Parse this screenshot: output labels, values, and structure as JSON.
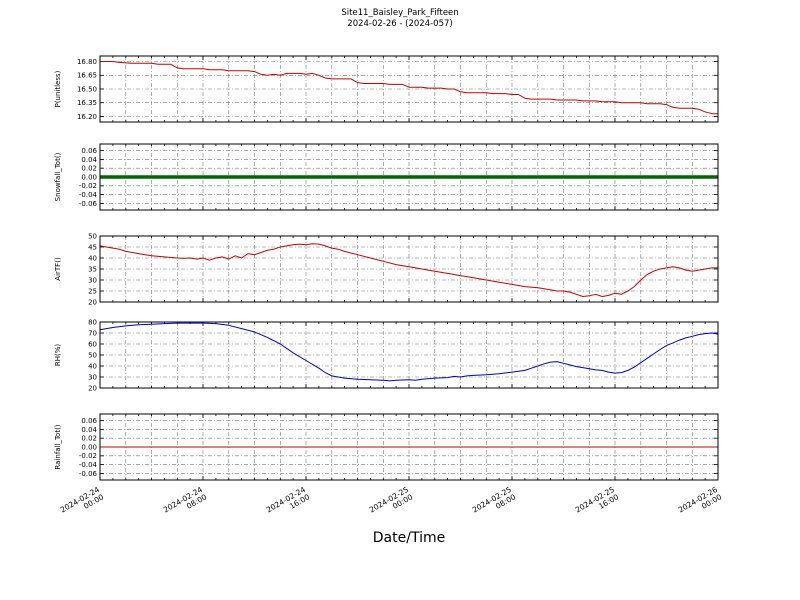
{
  "title": {
    "line1": "Site11_Baisley_Park_Fifteen",
    "line2": "2024-02-26 - (2024-057)"
  },
  "xlabel": "Date/Time",
  "x_axis": {
    "start_hour": 0,
    "end_hour": 48,
    "grid_interval_hours": 2,
    "minor_tick_interval_hours": 1,
    "tick_hours": [
      0,
      8,
      16,
      24,
      32,
      40,
      48
    ],
    "tick_labels": [
      {
        "date": "2024-02-24",
        "time": "00:00"
      },
      {
        "date": "2024-02-24",
        "time": "08:00"
      },
      {
        "date": "2024-02-24",
        "time": "16:00"
      },
      {
        "date": "2024-02-25",
        "time": "00:00"
      },
      {
        "date": "2024-02-25",
        "time": "08:00"
      },
      {
        "date": "2024-02-25",
        "time": "16:00"
      },
      {
        "date": "2024-02-26",
        "time": "00:00"
      }
    ]
  },
  "chart_data": [
    {
      "type": "line",
      "ylabel": "P(unitless)",
      "color": "#cc0000",
      "linewidth": 1,
      "ylim": [
        16.14,
        16.86
      ],
      "ytick_values": [
        16.2,
        16.35,
        16.5,
        16.65,
        16.8
      ],
      "ytick_labels": [
        "16.20",
        "16.35",
        "16.50",
        "16.65",
        "16.80"
      ],
      "points": [
        [
          0,
          16.8
        ],
        [
          1,
          16.8
        ],
        [
          1.5,
          16.79
        ],
        [
          2.5,
          16.78
        ],
        [
          4,
          16.78
        ],
        [
          4.5,
          16.77
        ],
        [
          5.5,
          16.77
        ],
        [
          6,
          16.73
        ],
        [
          6.5,
          16.72
        ],
        [
          8,
          16.72
        ],
        [
          8.5,
          16.71
        ],
        [
          9.5,
          16.71
        ],
        [
          10,
          16.7
        ],
        [
          11.5,
          16.7
        ],
        [
          12,
          16.69
        ],
        [
          12.5,
          16.66
        ],
        [
          13,
          16.65
        ],
        [
          13.5,
          16.66
        ],
        [
          14,
          16.65
        ],
        [
          14.5,
          16.67
        ],
        [
          15.5,
          16.67
        ],
        [
          16,
          16.66
        ],
        [
          16.5,
          16.67
        ],
        [
          17,
          16.65
        ],
        [
          17.5,
          16.62
        ],
        [
          18,
          16.61
        ],
        [
          19.5,
          16.61
        ],
        [
          20,
          16.57
        ],
        [
          20.5,
          16.56
        ],
        [
          22,
          16.56
        ],
        [
          22.5,
          16.55
        ],
        [
          23.5,
          16.55
        ],
        [
          24,
          16.52
        ],
        [
          25,
          16.52
        ],
        [
          25.5,
          16.51
        ],
        [
          26.5,
          16.51
        ],
        [
          27,
          16.5
        ],
        [
          27.5,
          16.5
        ],
        [
          28,
          16.47
        ],
        [
          28.5,
          16.46
        ],
        [
          30,
          16.46
        ],
        [
          30.5,
          16.45
        ],
        [
          31.5,
          16.45
        ],
        [
          32,
          16.44
        ],
        [
          32.5,
          16.44
        ],
        [
          33,
          16.4
        ],
        [
          33.5,
          16.39
        ],
        [
          35,
          16.39
        ],
        [
          35.5,
          16.38
        ],
        [
          37,
          16.38
        ],
        [
          37.5,
          16.37
        ],
        [
          38.5,
          16.37
        ],
        [
          39,
          16.36
        ],
        [
          40,
          16.36
        ],
        [
          40.5,
          16.35
        ],
        [
          42,
          16.35
        ],
        [
          42.5,
          16.34
        ],
        [
          43.5,
          16.34
        ],
        [
          44,
          16.33
        ],
        [
          44.5,
          16.3
        ],
        [
          45,
          16.29
        ],
        [
          46,
          16.29
        ],
        [
          46.5,
          16.28
        ],
        [
          47,
          16.25
        ],
        [
          47.3,
          16.24
        ],
        [
          47.6,
          16.23
        ],
        [
          48,
          16.23
        ]
      ]
    },
    {
      "type": "line",
      "ylabel": "Snowfall_Tot()",
      "color": "#006600",
      "linewidth": 3.5,
      "ylim": [
        -0.075,
        0.075
      ],
      "ytick_values": [
        -0.06,
        -0.04,
        -0.02,
        0.0,
        0.02,
        0.04,
        0.06
      ],
      "ytick_labels": [
        "-0.06",
        "-0.04",
        "-0.02",
        "0.00",
        "0.02",
        "0.04",
        "0.06"
      ],
      "points": [
        [
          0,
          0
        ],
        [
          48,
          0
        ]
      ]
    },
    {
      "type": "line",
      "ylabel": "AirTF()",
      "color": "#cc0000",
      "linewidth": 1,
      "ylim": [
        20,
        50
      ],
      "ytick_values": [
        20,
        25,
        30,
        35,
        40,
        45,
        50
      ],
      "ytick_labels": [
        "20",
        "25",
        "30",
        "35",
        "40",
        "45",
        "50"
      ],
      "points": [
        [
          0,
          45.5
        ],
        [
          0.5,
          45
        ],
        [
          1,
          44.5
        ],
        [
          1.5,
          44
        ],
        [
          2,
          43
        ],
        [
          2.5,
          42.5
        ],
        [
          3,
          42
        ],
        [
          3.5,
          41.5
        ],
        [
          4,
          41
        ],
        [
          5,
          40.5
        ],
        [
          6,
          40
        ],
        [
          6.5,
          39.8
        ],
        [
          7,
          40
        ],
        [
          7.5,
          39.5
        ],
        [
          8,
          40
        ],
        [
          8.5,
          39
        ],
        [
          9,
          40
        ],
        [
          9.5,
          40.5
        ],
        [
          10,
          39.5
        ],
        [
          10.5,
          41
        ],
        [
          11,
          40
        ],
        [
          11.5,
          42
        ],
        [
          12,
          41.5
        ],
        [
          12.5,
          42.5
        ],
        [
          13,
          43.5
        ],
        [
          13.5,
          44
        ],
        [
          14,
          45
        ],
        [
          14.5,
          45.5
        ],
        [
          15,
          46
        ],
        [
          15.5,
          46.3
        ],
        [
          16,
          46
        ],
        [
          16.5,
          46.5
        ],
        [
          17,
          46.3
        ],
        [
          17.5,
          45.5
        ],
        [
          18,
          44.5
        ],
        [
          18.5,
          44
        ],
        [
          19,
          43
        ],
        [
          20,
          41.5
        ],
        [
          21,
          40
        ],
        [
          22,
          38.5
        ],
        [
          23,
          37
        ],
        [
          24,
          36
        ],
        [
          25,
          35
        ],
        [
          26,
          34
        ],
        [
          27,
          33
        ],
        [
          28,
          32
        ],
        [
          29,
          31
        ],
        [
          30,
          30
        ],
        [
          31,
          29
        ],
        [
          32,
          28
        ],
        [
          33,
          27
        ],
        [
          34,
          26.5
        ],
        [
          34.5,
          26
        ],
        [
          35,
          25.5
        ],
        [
          35.5,
          25
        ],
        [
          36,
          25
        ],
        [
          36.5,
          24.5
        ],
        [
          37,
          23.5
        ],
        [
          37.5,
          22.5
        ],
        [
          38,
          22.8
        ],
        [
          38.5,
          23.5
        ],
        [
          39,
          22.5
        ],
        [
          39.5,
          23
        ],
        [
          40,
          24
        ],
        [
          40.5,
          23.5
        ],
        [
          41,
          25
        ],
        [
          41.5,
          27
        ],
        [
          42,
          30
        ],
        [
          42.5,
          32.5
        ],
        [
          43,
          34
        ],
        [
          43.5,
          35
        ],
        [
          44,
          35.5
        ],
        [
          44.5,
          36
        ],
        [
          45,
          35.5
        ],
        [
          45.5,
          34.5
        ],
        [
          46,
          34
        ],
        [
          46.5,
          34.5
        ],
        [
          47,
          35
        ],
        [
          47.5,
          35.5
        ],
        [
          48,
          35.5
        ]
      ]
    },
    {
      "type": "line",
      "ylabel": "RH(%)",
      "color": "#0000cc",
      "linewidth": 1,
      "ylim": [
        20,
        80
      ],
      "ytick_values": [
        20,
        30,
        40,
        50,
        60,
        70,
        80
      ],
      "ytick_labels": [
        "20",
        "30",
        "40",
        "50",
        "60",
        "70",
        "80"
      ],
      "points": [
        [
          0,
          73
        ],
        [
          0.5,
          74
        ],
        [
          1,
          75
        ],
        [
          2,
          76.5
        ],
        [
          3,
          77.5
        ],
        [
          4,
          78
        ],
        [
          5,
          78.5
        ],
        [
          6,
          79
        ],
        [
          7,
          79
        ],
        [
          8,
          79
        ],
        [
          9,
          78.5
        ],
        [
          10,
          77
        ],
        [
          11,
          74
        ],
        [
          12,
          71
        ],
        [
          13,
          66
        ],
        [
          14,
          60
        ],
        [
          15,
          52
        ],
        [
          16,
          45
        ],
        [
          17,
          38
        ],
        [
          17.5,
          34
        ],
        [
          18,
          31
        ],
        [
          18.5,
          30
        ],
        [
          19,
          29
        ],
        [
          20,
          28
        ],
        [
          21,
          27.5
        ],
        [
          22,
          27
        ],
        [
          22.5,
          26.5
        ],
        [
          23,
          27
        ],
        [
          24,
          27.5
        ],
        [
          24.5,
          27
        ],
        [
          25,
          28
        ],
        [
          26,
          29
        ],
        [
          27,
          29.5
        ],
        [
          27.5,
          30.5
        ],
        [
          28,
          30
        ],
        [
          28.5,
          31
        ],
        [
          29,
          31.5
        ],
        [
          30,
          32
        ],
        [
          31,
          33
        ],
        [
          32,
          34.5
        ],
        [
          33,
          36
        ],
        [
          33.5,
          38
        ],
        [
          34,
          40
        ],
        [
          34.5,
          42
        ],
        [
          35,
          43.5
        ],
        [
          35.5,
          44
        ],
        [
          36,
          42.5
        ],
        [
          36.5,
          41
        ],
        [
          37,
          39.5
        ],
        [
          37.5,
          38.5
        ],
        [
          38,
          37.5
        ],
        [
          38.5,
          36.5
        ],
        [
          39,
          36
        ],
        [
          39.5,
          34.5
        ],
        [
          40,
          33.5
        ],
        [
          40.5,
          34
        ],
        [
          41,
          36
        ],
        [
          41.5,
          39
        ],
        [
          42,
          43
        ],
        [
          42.5,
          47
        ],
        [
          43,
          51
        ],
        [
          43.5,
          55
        ],
        [
          44,
          58.5
        ],
        [
          44.5,
          61
        ],
        [
          45,
          63.5
        ],
        [
          45.5,
          65.5
        ],
        [
          46,
          67
        ],
        [
          46.5,
          68.5
        ],
        [
          47,
          69.5
        ],
        [
          47.5,
          70
        ],
        [
          48,
          69
        ]
      ]
    },
    {
      "type": "line",
      "ylabel": "Rainfall_Tot()",
      "color": "#cc0000",
      "linewidth": 1,
      "ylim": [
        -0.075,
        0.075
      ],
      "ytick_values": [
        -0.06,
        -0.04,
        -0.02,
        0.0,
        0.02,
        0.04,
        0.06
      ],
      "ytick_labels": [
        "-0.06",
        "-0.04",
        "-0.02",
        "0.00",
        "0.02",
        "0.04",
        "0.06"
      ],
      "points": [
        [
          0,
          0
        ],
        [
          48,
          0
        ]
      ]
    }
  ]
}
